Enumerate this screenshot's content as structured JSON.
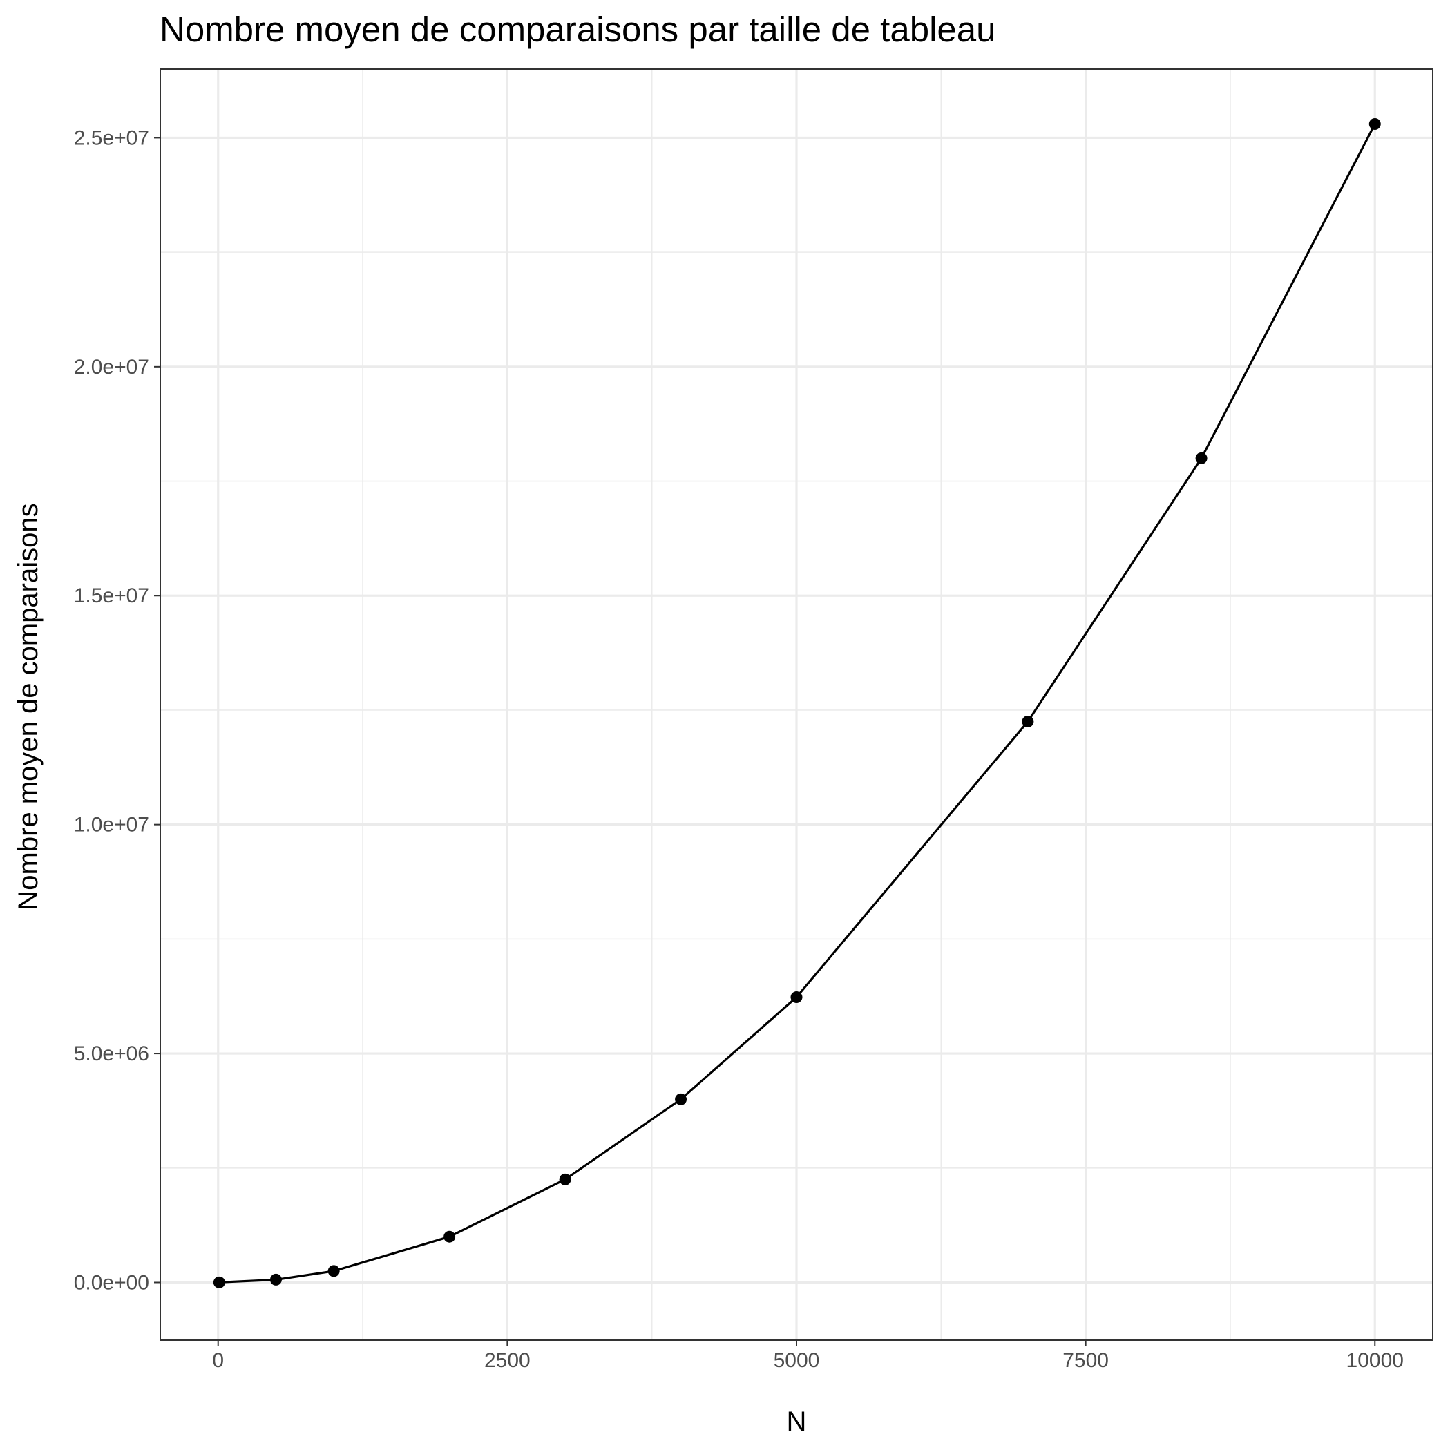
{
  "chart_data": {
    "type": "line",
    "title": "Nombre moyen de comparaisons par taille de tableau",
    "xlabel": "N",
    "ylabel": "Nombre moyen de comparaisons",
    "xlim": [
      -500,
      10500
    ],
    "ylim": [
      -1260000,
      26500000
    ],
    "x_ticks": [
      0,
      2500,
      5000,
      7500,
      10000
    ],
    "x_tick_labels": [
      "0",
      "2500",
      "5000",
      "7500",
      "10000"
    ],
    "x_minor_ticks": [
      1250,
      3750,
      6250,
      8750
    ],
    "y_ticks": [
      0,
      5000000,
      10000000,
      15000000,
      20000000,
      25000000
    ],
    "y_tick_labels": [
      "0.0e+00",
      "5.0e+06",
      "1.0e+07",
      "1.5e+07",
      "2.0e+07",
      "2.5e+07"
    ],
    "y_minor_ticks": [
      2500000,
      7500000,
      12500000,
      17500000,
      22500000
    ],
    "grid": true,
    "series": [
      {
        "x": [
          10,
          500,
          1000,
          2000,
          3000,
          4000,
          5000,
          7000,
          8500,
          10000
        ],
        "values": [
          2500,
          62000,
          250000,
          1000000,
          2250000,
          4000000,
          6230000,
          12250000,
          18000000,
          25300000
        ]
      }
    ]
  }
}
